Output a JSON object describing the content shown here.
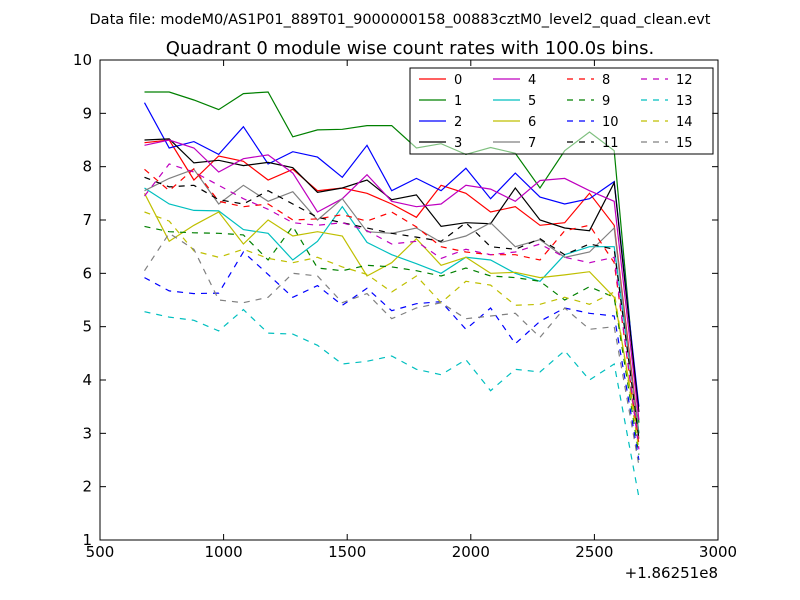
{
  "chart_data": {
    "type": "line",
    "suptitle": "Data file: modeM0/AS1P01_889T01_9000000158_00883cztM0_level2_quad_clean.evt",
    "title": "Quadrant 0 module wise count rates with 100.0s bins.",
    "xlabel": "",
    "ylabel": "",
    "x_offset_label": "+1.86251e8",
    "xlim": [
      500,
      3000
    ],
    "ylim": [
      1,
      10
    ],
    "x_ticks": [
      500,
      1000,
      1500,
      2000,
      2500,
      3000
    ],
    "y_ticks": [
      1,
      2,
      3,
      4,
      5,
      6,
      7,
      8,
      9,
      10
    ],
    "legend_position": "top-right",
    "x": [
      680,
      780,
      880,
      980,
      1080,
      1180,
      1280,
      1380,
      1480,
      1580,
      1680,
      1780,
      1880,
      1980,
      2080,
      2180,
      2280,
      2380,
      2480,
      2580,
      2680
    ],
    "series": [
      {
        "name": "0",
        "color": "#ff0000",
        "dash": "solid",
        "values": [
          8.45,
          8.5,
          7.75,
          8.2,
          8.1,
          7.75,
          7.95,
          7.55,
          7.6,
          7.5,
          7.3,
          7.05,
          7.65,
          7.5,
          7.15,
          7.25,
          6.9,
          6.95,
          7.5,
          6.9,
          3.0
        ]
      },
      {
        "name": "1",
        "color": "#008000",
        "dash": "solid",
        "values": [
          9.4,
          9.4,
          9.25,
          9.07,
          9.37,
          9.4,
          8.56,
          8.69,
          8.7,
          8.77,
          8.77,
          8.35,
          8.43,
          8.23,
          8.36,
          8.25,
          7.6,
          8.3,
          8.65,
          8.3,
          3.2
        ]
      },
      {
        "name": "2",
        "color": "#0000ff",
        "dash": "solid",
        "values": [
          9.2,
          8.35,
          8.47,
          8.23,
          8.75,
          8.05,
          8.28,
          8.18,
          7.8,
          8.4,
          7.55,
          7.78,
          7.55,
          7.97,
          7.4,
          7.88,
          7.43,
          7.3,
          7.4,
          7.72,
          3.5
        ]
      },
      {
        "name": "3",
        "color": "#000000",
        "dash": "solid",
        "values": [
          8.5,
          8.52,
          8.07,
          8.12,
          8.02,
          8.08,
          7.98,
          7.52,
          7.6,
          7.75,
          7.38,
          7.47,
          6.88,
          6.95,
          6.93,
          7.6,
          7.0,
          6.85,
          6.8,
          7.7,
          3.4
        ]
      },
      {
        "name": "4",
        "color": "#bf00bf",
        "dash": "solid",
        "values": [
          8.4,
          8.5,
          8.35,
          7.9,
          8.15,
          8.22,
          7.88,
          7.15,
          7.4,
          7.85,
          7.35,
          7.25,
          7.3,
          7.65,
          7.58,
          7.35,
          7.74,
          7.78,
          7.55,
          7.35,
          3.25
        ]
      },
      {
        "name": "5",
        "color": "#00bfbf",
        "dash": "solid",
        "values": [
          7.6,
          7.3,
          7.18,
          7.17,
          6.82,
          6.75,
          6.25,
          6.6,
          7.25,
          6.58,
          6.35,
          6.18,
          6.0,
          6.3,
          6.25,
          6.0,
          5.85,
          6.35,
          6.5,
          6.5,
          3.0
        ]
      },
      {
        "name": "6",
        "color": "#bfbf00",
        "dash": "solid",
        "values": [
          7.5,
          6.6,
          6.9,
          7.15,
          6.55,
          7.0,
          6.7,
          6.78,
          6.7,
          5.95,
          6.2,
          6.65,
          6.15,
          6.3,
          6.0,
          6.02,
          5.92,
          5.97,
          6.03,
          5.55,
          2.9
        ]
      },
      {
        "name": "7",
        "color": "#808080",
        "dash": "solid",
        "values": [
          7.55,
          7.78,
          7.95,
          7.3,
          7.65,
          7.35,
          7.53,
          7.0,
          7.4,
          6.78,
          6.75,
          6.85,
          6.58,
          6.7,
          6.95,
          6.5,
          6.63,
          6.3,
          6.4,
          6.85,
          2.9
        ]
      },
      {
        "name": "8",
        "color": "#ff0000",
        "dash": "dashed",
        "values": [
          7.95,
          7.55,
          7.96,
          7.35,
          7.25,
          7.3,
          7.0,
          7.02,
          7.1,
          6.98,
          7.15,
          6.87,
          6.5,
          6.4,
          6.35,
          6.35,
          6.25,
          6.8,
          6.9,
          6.2,
          2.8
        ]
      },
      {
        "name": "9",
        "color": "#008000",
        "dash": "dashed",
        "values": [
          6.88,
          6.78,
          6.76,
          6.75,
          6.72,
          6.25,
          6.88,
          6.1,
          6.05,
          6.15,
          6.12,
          6.05,
          5.95,
          6.1,
          5.95,
          5.92,
          5.85,
          5.5,
          5.75,
          5.55,
          2.6
        ]
      },
      {
        "name": "10",
        "color": "#0000ff",
        "dash": "dashed",
        "values": [
          5.92,
          5.67,
          5.62,
          5.63,
          6.4,
          5.98,
          5.55,
          5.77,
          5.4,
          5.72,
          5.3,
          5.43,
          5.47,
          4.95,
          5.35,
          4.68,
          5.1,
          5.35,
          5.25,
          5.2,
          2.5
        ]
      },
      {
        "name": "11",
        "color": "#000000",
        "dash": "dashed",
        "values": [
          7.8,
          7.62,
          7.65,
          7.38,
          7.3,
          7.55,
          7.3,
          7.05,
          6.95,
          6.85,
          6.75,
          6.68,
          6.6,
          6.95,
          6.5,
          6.45,
          6.65,
          6.35,
          6.55,
          6.45,
          2.9
        ]
      },
      {
        "name": "12",
        "color": "#bf00bf",
        "dash": "dashed",
        "values": [
          7.45,
          8.05,
          7.9,
          7.65,
          7.4,
          7.2,
          6.95,
          6.9,
          6.95,
          6.8,
          6.55,
          6.6,
          6.28,
          6.45,
          6.35,
          6.4,
          6.55,
          6.3,
          6.2,
          6.3,
          2.7
        ]
      },
      {
        "name": "13",
        "color": "#00bfbf",
        "dash": "dashed",
        "values": [
          5.28,
          5.18,
          5.12,
          4.92,
          5.32,
          4.88,
          4.86,
          4.65,
          4.3,
          4.35,
          4.45,
          4.2,
          4.1,
          4.38,
          3.8,
          4.2,
          4.15,
          4.55,
          4.0,
          4.3,
          1.8
        ]
      },
      {
        "name": "14",
        "color": "#bfbf00",
        "dash": "dashed",
        "values": [
          7.15,
          6.98,
          6.42,
          6.3,
          6.45,
          6.28,
          6.2,
          6.3,
          6.12,
          5.98,
          5.65,
          5.95,
          5.45,
          5.85,
          5.78,
          5.4,
          5.42,
          5.55,
          5.42,
          5.65,
          2.7
        ]
      },
      {
        "name": "15",
        "color": "#808080",
        "dash": "dashed",
        "values": [
          6.05,
          6.75,
          6.45,
          5.5,
          5.45,
          5.55,
          6.0,
          5.95,
          5.45,
          5.62,
          5.15,
          5.35,
          5.45,
          5.15,
          5.2,
          5.25,
          4.8,
          5.35,
          4.95,
          5.0,
          2.4
        ]
      }
    ]
  }
}
